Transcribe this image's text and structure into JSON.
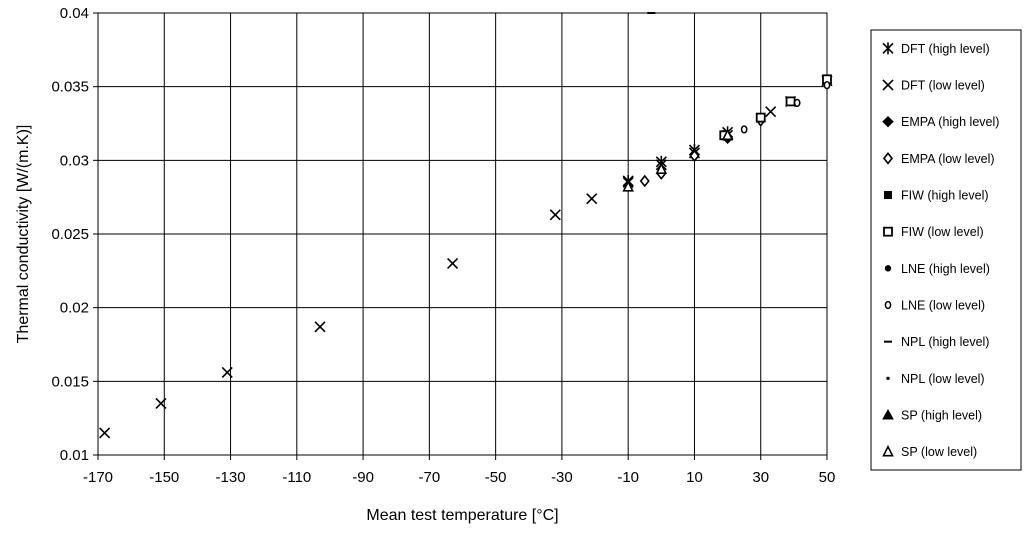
{
  "chart_data": {
    "type": "scatter",
    "xlabel": "Mean test temperature [°C]",
    "ylabel": "Thermal conductivity [W/(m.K)]",
    "xlim": [
      -170,
      50
    ],
    "ylim": [
      0.01,
      0.04
    ],
    "x_ticks": [
      "-170",
      "-150",
      "-130",
      "-110",
      "-90",
      "-70",
      "-50",
      "-30",
      "-10",
      "10",
      "30",
      "50"
    ],
    "y_ticks": [
      "0.01",
      "0.015",
      "0.02",
      "0.025",
      "0.03",
      "0.035",
      "0.04"
    ],
    "grid": true,
    "legend_position": "right",
    "series": [
      {
        "name": "DFT (high level)",
        "marker": "asterisk",
        "points": [
          [
            -10,
            0.0286
          ],
          [
            10,
            0.0307
          ],
          [
            20,
            0.0319
          ],
          [
            0,
            0.0299
          ]
        ]
      },
      {
        "name": "DFT (low level)",
        "marker": "x",
        "points": [
          [
            -168,
            0.0115
          ],
          [
            -151,
            0.0135
          ],
          [
            -131,
            0.0156
          ],
          [
            -103,
            0.0187
          ],
          [
            -63,
            0.023
          ],
          [
            -32,
            0.0263
          ],
          [
            -21,
            0.0274
          ],
          [
            -10,
            0.0285
          ],
          [
            0,
            0.0297
          ],
          [
            10,
            0.0305
          ],
          [
            20,
            0.0317
          ],
          [
            33,
            0.0333
          ],
          [
            39,
            0.034
          ],
          [
            50,
            0.0354
          ]
        ]
      },
      {
        "name": "EMPA (high level)",
        "marker": "diamond-filled",
        "points": [
          [
            20,
            0.0315
          ]
        ]
      },
      {
        "name": "EMPA (low level)",
        "marker": "diamond-open",
        "points": [
          [
            -5,
            0.0286
          ],
          [
            0,
            0.0291
          ],
          [
            10,
            0.0303
          ],
          [
            30,
            0.0327
          ]
        ]
      },
      {
        "name": "FIW (high level)",
        "marker": "square-filled",
        "points": [
          [
            30,
            0.0329
          ]
        ]
      },
      {
        "name": "FIW (low level)",
        "marker": "square-open",
        "points": [
          [
            19,
            0.0317
          ],
          [
            30,
            0.0329
          ],
          [
            39,
            0.034
          ],
          [
            50,
            0.0355
          ]
        ]
      },
      {
        "name": "LNE (high level)",
        "marker": "circle-filled",
        "points": []
      },
      {
        "name": "LNE (low level)",
        "marker": "circle-open",
        "points": [
          [
            25,
            0.0321
          ],
          [
            41,
            0.0339
          ],
          [
            50,
            0.0351
          ]
        ]
      },
      {
        "name": "NPL (high level)",
        "marker": "dash",
        "points": [
          [
            -3,
            0.04
          ]
        ]
      },
      {
        "name": "NPL (low level)",
        "marker": "dot",
        "points": []
      },
      {
        "name": "SP (high level)",
        "marker": "triangle-filled",
        "points": []
      },
      {
        "name": "SP (low level)",
        "marker": "triangle-open",
        "points": [
          [
            -10,
            0.0282
          ],
          [
            0,
            0.0294
          ],
          [
            20,
            0.0317
          ]
        ]
      }
    ]
  }
}
